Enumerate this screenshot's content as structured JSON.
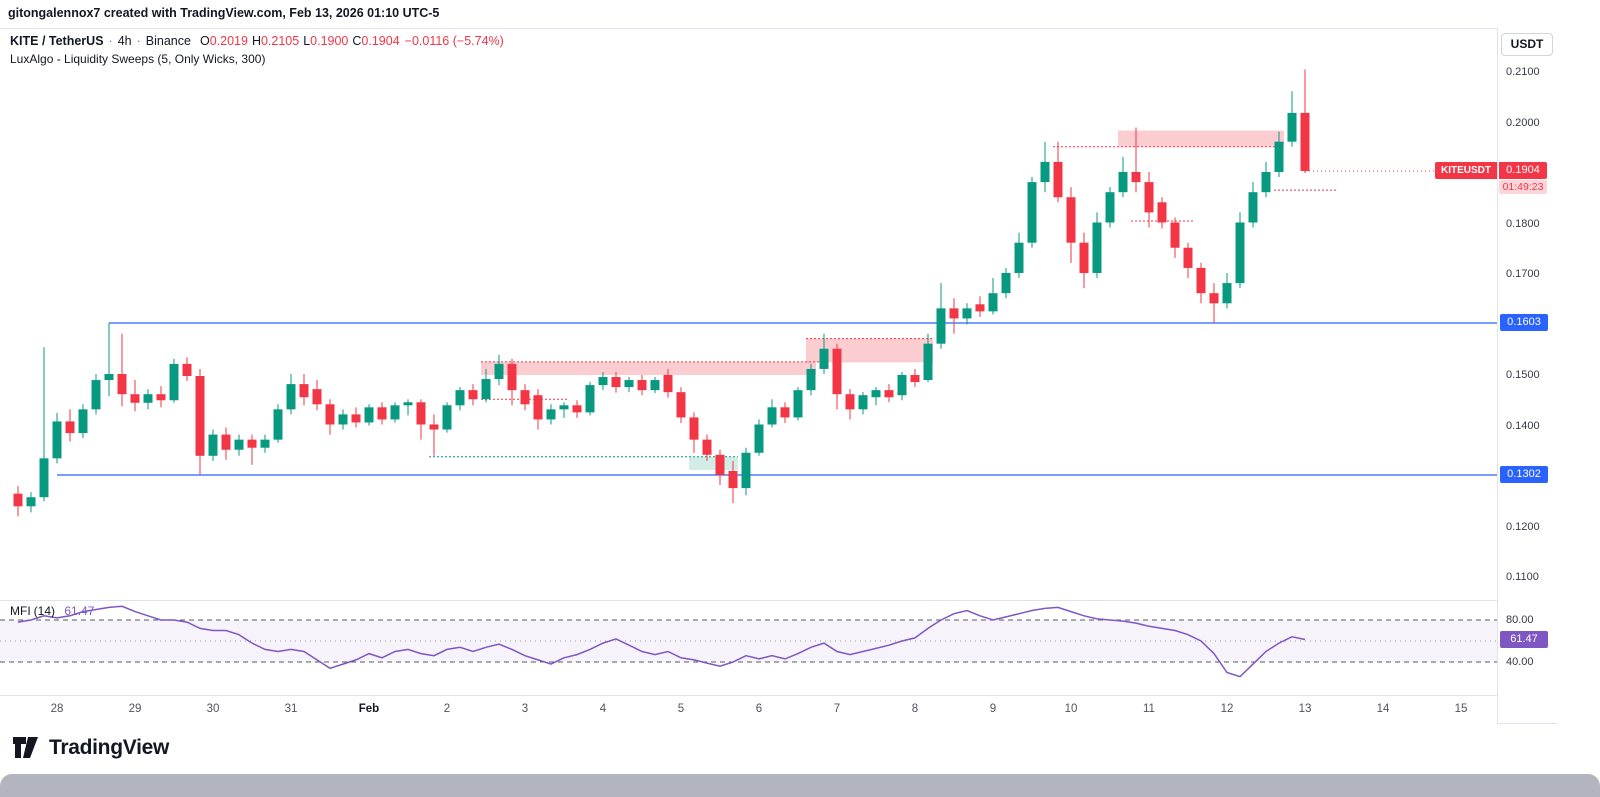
{
  "page": {
    "attribution": "gitongalennox7 created with TradingView.com, Feb 13, 2026 01:10 UTC-5",
    "brand": "TradingView"
  },
  "header": {
    "symbol": "KITE / TetherUS",
    "sep": "·",
    "interval": "4h",
    "exchange": "Binance",
    "ohlc": [
      {
        "label": "O",
        "value": "0.2019"
      },
      {
        "label": "H",
        "value": "0.2105"
      },
      {
        "label": "L",
        "value": "0.1900"
      },
      {
        "label": "C",
        "value": "0.1904"
      }
    ],
    "change": "−0.0116 (−5.74%)",
    "indicator": "LuxAlgo - Liquidity Sweeps (5, Only Wicks, 300)"
  },
  "axis": {
    "currency": "USDT",
    "price_labels": [
      {
        "text": "0.2100",
        "value": 0.21
      },
      {
        "text": "0.2000",
        "value": 0.2
      },
      {
        "text": "0.1800",
        "value": 0.18
      },
      {
        "text": "0.1700",
        "value": 0.17
      },
      {
        "text": "0.1500",
        "value": 0.15
      },
      {
        "text": "0.1400",
        "value": 0.14
      },
      {
        "text": "0.1200",
        "value": 0.12
      },
      {
        "text": "0.1100",
        "value": 0.11
      }
    ],
    "level_badges": [
      {
        "text": "0.1603",
        "value": 0.1603,
        "color": "#2962ff"
      },
      {
        "text": "0.1302",
        "value": 0.1302,
        "color": "#2962ff"
      }
    ],
    "price_badge": {
      "symbol": "KITEUSDT",
      "price": "0.1904",
      "countdown": "01:49:23",
      "color": "#f23645"
    }
  },
  "mfi_pane": {
    "name": "MFI",
    "params": "(14)",
    "value": "61.47",
    "labels": [
      {
        "text": "80.00",
        "value": 80
      },
      {
        "text": "40.00",
        "value": 40
      }
    ],
    "badge": {
      "text": "61.47",
      "value": 61.47,
      "color": "#7e57c2"
    }
  },
  "time_labels": [
    {
      "text": "28",
      "i": 3
    },
    {
      "text": "29",
      "i": 9
    },
    {
      "text": "30",
      "i": 15
    },
    {
      "text": "31",
      "i": 21
    },
    {
      "text": "Feb",
      "i": 27,
      "bold": true
    },
    {
      "text": "2",
      "i": 33
    },
    {
      "text": "3",
      "i": 39
    },
    {
      "text": "4",
      "i": 45
    },
    {
      "text": "5",
      "i": 51
    },
    {
      "text": "6",
      "i": 57
    },
    {
      "text": "7",
      "i": 63
    },
    {
      "text": "8",
      "i": 69
    },
    {
      "text": "9",
      "i": 75
    },
    {
      "text": "10",
      "i": 81
    },
    {
      "text": "11",
      "i": 87
    },
    {
      "text": "12",
      "i": 93
    },
    {
      "text": "13",
      "i": 99
    },
    {
      "text": "14",
      "i": 105
    },
    {
      "text": "15",
      "i": 111
    }
  ],
  "chart_data": {
    "type": "candlestick",
    "title": "KITE / TetherUS · 4h · Binance",
    "indicator_title": "LuxAlgo - Liquidity Sweeps (5, Only Wicks, 300)",
    "price_axis_range": [
      0.11,
      0.2155
    ],
    "up_color": "#089981",
    "down_color": "#f23645",
    "candles": [
      [
        0.1265,
        0.128,
        0.122,
        0.124
      ],
      [
        0.124,
        0.1268,
        0.1228,
        0.1258
      ],
      [
        0.1258,
        0.1555,
        0.125,
        0.1335
      ],
      [
        0.1335,
        0.1425,
        0.1325,
        0.1408
      ],
      [
        0.1408,
        0.1432,
        0.1368,
        0.1385
      ],
      [
        0.1385,
        0.1442,
        0.1375,
        0.1432
      ],
      [
        0.1432,
        0.1502,
        0.1422,
        0.149
      ],
      [
        0.149,
        0.1603,
        0.1458,
        0.1502
      ],
      [
        0.1502,
        0.1582,
        0.1438,
        0.1462
      ],
      [
        0.1462,
        0.149,
        0.1428,
        0.1445
      ],
      [
        0.1445,
        0.1472,
        0.1432,
        0.1462
      ],
      [
        0.1462,
        0.1478,
        0.1436,
        0.145
      ],
      [
        0.145,
        0.1532,
        0.1445,
        0.1522
      ],
      [
        0.1522,
        0.1535,
        0.1488,
        0.1498
      ],
      [
        0.1498,
        0.1512,
        0.1302,
        0.134
      ],
      [
        0.134,
        0.1392,
        0.133,
        0.1382
      ],
      [
        0.1382,
        0.1396,
        0.1332,
        0.1352
      ],
      [
        0.1352,
        0.1382,
        0.134,
        0.1372
      ],
      [
        0.1372,
        0.1382,
        0.1322,
        0.1356
      ],
      [
        0.1356,
        0.1382,
        0.1346,
        0.1372
      ],
      [
        0.1372,
        0.1442,
        0.1366,
        0.1432
      ],
      [
        0.1432,
        0.1502,
        0.1422,
        0.1482
      ],
      [
        0.1482,
        0.1502,
        0.144,
        0.1456
      ],
      [
        0.1472,
        0.149,
        0.143,
        0.1442
      ],
      [
        0.1442,
        0.1452,
        0.1382,
        0.1402
      ],
      [
        0.1402,
        0.1432,
        0.1392,
        0.1422
      ],
      [
        0.1422,
        0.1436,
        0.1396,
        0.1406
      ],
      [
        0.1406,
        0.1442,
        0.14,
        0.1436
      ],
      [
        0.1436,
        0.1446,
        0.1402,
        0.1412
      ],
      [
        0.1412,
        0.1446,
        0.1406,
        0.144
      ],
      [
        0.144,
        0.1452,
        0.142,
        0.1446
      ],
      [
        0.1446,
        0.1452,
        0.1372,
        0.1402
      ],
      [
        0.1402,
        0.1422,
        0.134,
        0.1392
      ],
      [
        0.1392,
        0.1446,
        0.1386,
        0.144
      ],
      [
        0.144,
        0.1476,
        0.143,
        0.147
      ],
      [
        0.147,
        0.1482,
        0.144,
        0.1452
      ],
      [
        0.1452,
        0.1512,
        0.1446,
        0.1492
      ],
      [
        0.1492,
        0.154,
        0.148,
        0.1522
      ],
      [
        0.1522,
        0.1532,
        0.144,
        0.147
      ],
      [
        0.147,
        0.1482,
        0.143,
        0.1442
      ],
      [
        0.146,
        0.1472,
        0.1392,
        0.1412
      ],
      [
        0.1412,
        0.1442,
        0.1402,
        0.1432
      ],
      [
        0.1432,
        0.1446,
        0.1415,
        0.144
      ],
      [
        0.144,
        0.145,
        0.1415,
        0.1426
      ],
      [
        0.1426,
        0.1486,
        0.142,
        0.148
      ],
      [
        0.148,
        0.1506,
        0.147,
        0.1496
      ],
      [
        0.1496,
        0.1506,
        0.1465,
        0.1476
      ],
      [
        0.1476,
        0.1496,
        0.1466,
        0.149
      ],
      [
        0.149,
        0.15,
        0.146,
        0.147
      ],
      [
        0.147,
        0.1496,
        0.1464,
        0.149
      ],
      [
        0.15,
        0.1512,
        0.1455,
        0.1466
      ],
      [
        0.1466,
        0.1476,
        0.1405,
        0.1416
      ],
      [
        0.1416,
        0.1426,
        0.1346,
        0.1372
      ],
      [
        0.1372,
        0.1382,
        0.133,
        0.1342
      ],
      [
        0.1342,
        0.1352,
        0.1282,
        0.1302
      ],
      [
        0.131,
        0.133,
        0.1246,
        0.1276
      ],
      [
        0.1276,
        0.1356,
        0.1262,
        0.1346
      ],
      [
        0.1346,
        0.1412,
        0.134,
        0.1402
      ],
      [
        0.1402,
        0.1452,
        0.1396,
        0.1436
      ],
      [
        0.1436,
        0.1446,
        0.1405,
        0.1416
      ],
      [
        0.1416,
        0.1476,
        0.141,
        0.147
      ],
      [
        0.147,
        0.1522,
        0.146,
        0.1512
      ],
      [
        0.1512,
        0.1582,
        0.1502,
        0.1552
      ],
      [
        0.1552,
        0.1562,
        0.1432,
        0.1462
      ],
      [
        0.1462,
        0.1472,
        0.1412,
        0.1432
      ],
      [
        0.1432,
        0.1466,
        0.1422,
        0.146
      ],
      [
        0.1456,
        0.1476,
        0.144,
        0.147
      ],
      [
        0.147,
        0.1482,
        0.1446,
        0.1456
      ],
      [
        0.146,
        0.1506,
        0.145,
        0.15
      ],
      [
        0.15,
        0.1512,
        0.1476,
        0.1486
      ],
      [
        0.149,
        0.1582,
        0.1486,
        0.1562
      ],
      [
        0.1562,
        0.1682,
        0.1552,
        0.1632
      ],
      [
        0.1632,
        0.1652,
        0.1582,
        0.1612
      ],
      [
        0.1612,
        0.1642,
        0.16,
        0.1632
      ],
      [
        0.164,
        0.1656,
        0.1615,
        0.1626
      ],
      [
        0.1626,
        0.1692,
        0.162,
        0.1662
      ],
      [
        0.1662,
        0.1712,
        0.1652,
        0.1702
      ],
      [
        0.1702,
        0.1782,
        0.1692,
        0.1762
      ],
      [
        0.1762,
        0.1892,
        0.1752,
        0.1882
      ],
      [
        0.1882,
        0.1962,
        0.1862,
        0.1922
      ],
      [
        0.1922,
        0.1962,
        0.1842,
        0.1852
      ],
      [
        0.1852,
        0.1872,
        0.1722,
        0.1762
      ],
      [
        0.1762,
        0.1782,
        0.1672,
        0.1702
      ],
      [
        0.1702,
        0.1822,
        0.1692,
        0.1802
      ],
      [
        0.1802,
        0.1872,
        0.1792,
        0.1862
      ],
      [
        0.1862,
        0.1932,
        0.1852,
        0.1902
      ],
      [
        0.1902,
        0.199,
        0.1862,
        0.1882
      ],
      [
        0.1882,
        0.1902,
        0.1792,
        0.1822
      ],
      [
        0.1842,
        0.1852,
        0.179,
        0.1802
      ],
      [
        0.1802,
        0.1812,
        0.1732,
        0.1752
      ],
      [
        0.1752,
        0.1762,
        0.1692,
        0.1712
      ],
      [
        0.1712,
        0.1722,
        0.1642,
        0.1662
      ],
      [
        0.1662,
        0.1682,
        0.1602,
        0.1642
      ],
      [
        0.1642,
        0.1702,
        0.1632,
        0.1682
      ],
      [
        0.1682,
        0.1822,
        0.1672,
        0.1802
      ],
      [
        0.1802,
        0.1882,
        0.1792,
        0.1862
      ],
      [
        0.1862,
        0.1922,
        0.1852,
        0.1902
      ],
      [
        0.1902,
        0.1982,
        0.1892,
        0.1962
      ],
      [
        0.1962,
        0.2062,
        0.1952,
        0.2019
      ],
      [
        0.2019,
        0.2105,
        0.19,
        0.1904
      ]
    ],
    "hlines": [
      {
        "price": 0.1603,
        "from": 7,
        "color": "#2962ff"
      },
      {
        "price": 0.1302,
        "from": 3,
        "color": "#2962ff"
      }
    ],
    "zones": [
      {
        "from": 36,
        "to": 61,
        "bottom": 0.15,
        "top": 0.1526,
        "color": "rgba(242,54,69,0.25)"
      },
      {
        "from": 61,
        "to": 70,
        "bottom": 0.1525,
        "top": 0.1572,
        "color": "rgba(242,54,69,0.25)"
      },
      {
        "from": 85,
        "to": 97,
        "bottom": 0.1952,
        "top": 0.1984,
        "color": "rgba(242,54,69,0.25)"
      },
      {
        "from": 52,
        "to": 55,
        "bottom": 0.1312,
        "top": 0.1338,
        "color": "rgba(8,153,129,0.18)"
      }
    ],
    "levels": [
      {
        "from": 36,
        "to": 62,
        "price": 0.1526,
        "color": "#f23645"
      },
      {
        "from": 61,
        "to": 70,
        "price": 0.1572,
        "color": "#f23645"
      },
      {
        "from": 80,
        "to": 97,
        "price": 0.1952,
        "color": "#f23645"
      },
      {
        "from": 32,
        "to": 55,
        "price": 0.1338,
        "color": "#089981"
      },
      {
        "from": 36,
        "to": 42,
        "price": 0.1452,
        "color": "#f23645"
      },
      {
        "from": 86,
        "to": 90,
        "price": 0.1805,
        "color": "#f23645"
      },
      {
        "from": 97,
        "to": 101,
        "price": 0.1866,
        "color": "#f23645"
      }
    ],
    "price_line": {
      "price": 0.1904,
      "from": 99,
      "color": "#f23645"
    },
    "mfi": {
      "name": "MFI (14)",
      "current": 61.47,
      "upper_band": 80,
      "lower_band": 40,
      "middle_band": 60,
      "color": "#7e57c2",
      "values": [
        78,
        80,
        84,
        82,
        84,
        88,
        90,
        92,
        93,
        88,
        84,
        80,
        80,
        78,
        72,
        70,
        70,
        66,
        58,
        52,
        50,
        52,
        50,
        42,
        34,
        38,
        42,
        48,
        44,
        50,
        52,
        48,
        46,
        52,
        54,
        50,
        54,
        57,
        52,
        46,
        42,
        38,
        44,
        47,
        52,
        58,
        62,
        56,
        50,
        47,
        50,
        44,
        42,
        39,
        36,
        40,
        46,
        43,
        46,
        43,
        48,
        54,
        58,
        50,
        47,
        50,
        53,
        56,
        60,
        63,
        72,
        80,
        86,
        89,
        84,
        80,
        83,
        86,
        89,
        91,
        92,
        88,
        84,
        81,
        80,
        79,
        77,
        74,
        72,
        70,
        66,
        60,
        48,
        30,
        26,
        38,
        50,
        58,
        64,
        61.47
      ]
    }
  }
}
